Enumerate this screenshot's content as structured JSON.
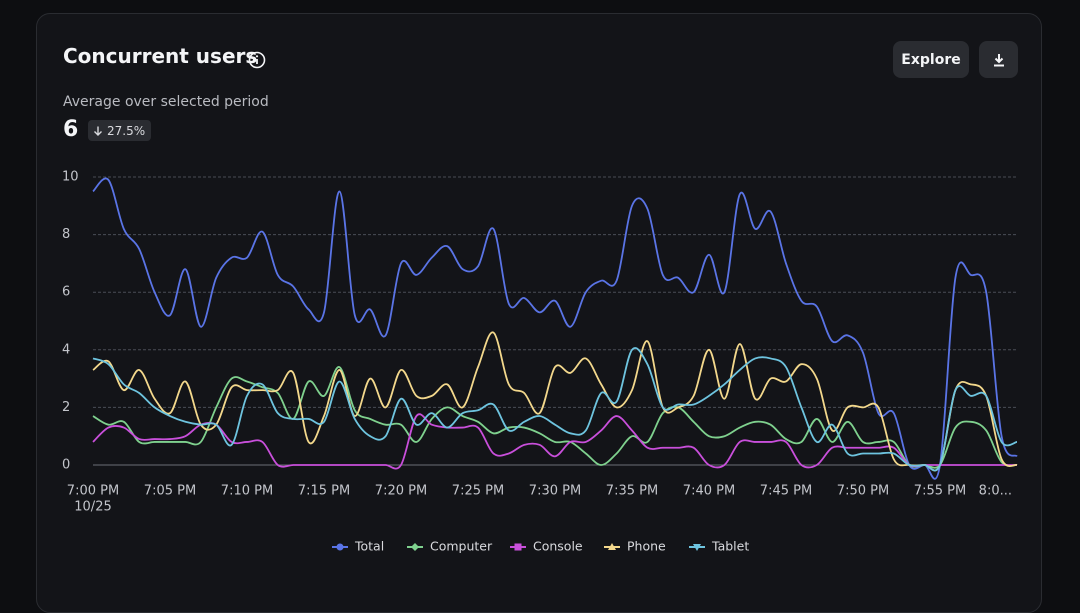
{
  "header": {
    "title": "Concurrent users",
    "explore_button": "Explore",
    "summary_label": "Average over selected period",
    "summary_value": 6,
    "summary_change": "27.5%"
  },
  "chart_data": {
    "type": "line",
    "x": [
      0,
      1,
      2,
      3,
      4,
      5,
      6,
      7,
      8,
      9,
      10,
      11,
      12,
      13,
      14,
      15,
      16,
      17,
      18,
      19,
      20,
      21,
      22,
      23,
      24,
      25,
      26,
      27,
      28,
      29,
      30,
      31,
      32,
      33,
      34,
      35,
      36,
      37,
      38,
      39,
      40,
      41,
      42,
      43,
      44,
      45,
      46,
      47,
      48,
      49,
      50,
      51,
      52,
      53,
      54,
      55,
      56,
      57,
      58,
      59,
      60
    ],
    "xlim": [
      0,
      60
    ],
    "xticks": [
      {
        "value": 0,
        "label": "7:00 PM"
      },
      {
        "value": 5,
        "label": "7:05 PM"
      },
      {
        "value": 10,
        "label": "7:10 PM"
      },
      {
        "value": 15,
        "label": "7:15 PM"
      },
      {
        "value": 20,
        "label": "7:20 PM"
      },
      {
        "value": 25,
        "label": "7:25 PM"
      },
      {
        "value": 30,
        "label": "7:30 PM"
      },
      {
        "value": 35,
        "label": "7:35 PM"
      },
      {
        "value": 40,
        "label": "7:40 PM"
      },
      {
        "value": 45,
        "label": "7:45 PM"
      },
      {
        "value": 50,
        "label": "7:50 PM"
      },
      {
        "value": 55,
        "label": "7:55 PM"
      },
      {
        "value": 60,
        "label": "8:0..."
      }
    ],
    "x_date_label": "10/25",
    "ylim": [
      0,
      10
    ],
    "yticks": [
      0,
      2,
      4,
      6,
      8,
      10
    ],
    "grid": true,
    "legend": "bottom",
    "series": [
      {
        "name": "Total",
        "color": "#5a74e6",
        "marker": "circle",
        "values": [
          9.5,
          9.9,
          8.2,
          7.5,
          6.0,
          5.2,
          6.8,
          4.8,
          6.5,
          7.2,
          7.2,
          8.1,
          6.6,
          6.2,
          5.4,
          5.3,
          9.5,
          5.2,
          5.4,
          4.5,
          7.0,
          6.6,
          7.2,
          7.6,
          6.8,
          6.9,
          8.2,
          5.6,
          5.8,
          5.3,
          5.7,
          4.8,
          6.0,
          6.4,
          6.4,
          9.0,
          8.9,
          6.6,
          6.5,
          6.0,
          7.3,
          6.0,
          9.4,
          8.2,
          8.8,
          7.0,
          5.7,
          5.5,
          4.3,
          4.5,
          3.9,
          1.8,
          1.8,
          0,
          0,
          0,
          6.5,
          6.6,
          6.0,
          1.0,
          0.3
        ]
      },
      {
        "name": "Computer",
        "color": "#7fd18e",
        "marker": "diamond",
        "values": [
          1.7,
          1.4,
          1.5,
          0.8,
          0.8,
          0.8,
          0.8,
          0.8,
          2.0,
          3.0,
          2.9,
          2.7,
          2.5,
          1.6,
          2.9,
          2.4,
          3.4,
          1.9,
          1.6,
          1.4,
          1.4,
          0.8,
          1.6,
          2.0,
          1.7,
          1.5,
          1.1,
          1.3,
          1.3,
          1.1,
          0.8,
          0.8,
          0.4,
          0,
          0.4,
          1.0,
          0.8,
          1.8,
          2.0,
          1.5,
          1.0,
          1.0,
          1.3,
          1.5,
          1.4,
          0.9,
          0.8,
          1.6,
          0.8,
          1.5,
          0.8,
          0.8,
          0.8,
          0,
          0,
          0,
          1.3,
          1.5,
          1.2,
          0.1,
          0
        ]
      },
      {
        "name": "Console",
        "color": "#c94fdb",
        "marker": "square",
        "values": [
          0.8,
          1.3,
          1.3,
          0.9,
          0.9,
          0.9,
          1.0,
          1.4,
          1.4,
          0.8,
          0.8,
          0.8,
          0,
          0,
          0,
          0,
          0,
          0,
          0,
          0,
          0,
          1.7,
          1.4,
          1.3,
          1.3,
          1.3,
          0.4,
          0.4,
          0.7,
          0.7,
          0.3,
          0.8,
          0.8,
          1.2,
          1.7,
          1.2,
          0.6,
          0.6,
          0.6,
          0.6,
          0,
          0,
          0.8,
          0.8,
          0.8,
          0.8,
          0,
          0,
          0.6,
          0.6,
          0.6,
          0.6,
          0.6,
          0,
          0,
          0,
          0,
          0,
          0,
          0,
          0
        ]
      },
      {
        "name": "Phone",
        "color": "#f3d88c",
        "marker": "triangle-up",
        "values": [
          3.3,
          3.6,
          2.6,
          3.3,
          2.3,
          1.8,
          2.9,
          1.4,
          1.4,
          2.7,
          2.6,
          2.6,
          2.6,
          3.2,
          0.8,
          1.7,
          3.3,
          1.7,
          3.0,
          2.0,
          3.3,
          2.4,
          2.4,
          2.8,
          2.0,
          3.4,
          4.6,
          2.8,
          2.5,
          1.8,
          3.4,
          3.2,
          3.7,
          2.8,
          2.0,
          2.6,
          4.3,
          2.0,
          2.0,
          2.4,
          4.0,
          2.3,
          4.2,
          2.3,
          3.0,
          2.9,
          3.5,
          3.0,
          1.2,
          2.0,
          2.0,
          2.0,
          0.2,
          0,
          0,
          0,
          2.6,
          2.8,
          2.4,
          0.2,
          0
        ]
      },
      {
        "name": "Tablet",
        "color": "#6ec4df",
        "marker": "triangle-down",
        "values": [
          3.7,
          3.5,
          2.8,
          2.5,
          2.0,
          1.7,
          1.5,
          1.4,
          1.4,
          0.7,
          2.4,
          2.8,
          1.8,
          1.6,
          1.6,
          1.5,
          2.9,
          1.6,
          1.0,
          1.0,
          2.3,
          1.4,
          1.8,
          1.3,
          1.8,
          1.9,
          2.1,
          1.2,
          1.5,
          1.7,
          1.4,
          1.1,
          1.2,
          2.5,
          2.2,
          4.0,
          3.5,
          2.0,
          2.1,
          2.1,
          2.4,
          2.8,
          3.3,
          3.7,
          3.7,
          3.4,
          2.0,
          0.8,
          1.4,
          0.4,
          0.4,
          0.4,
          0.4,
          0,
          0,
          0,
          2.6,
          2.4,
          2.4,
          0.8,
          0.8
        ]
      }
    ]
  }
}
